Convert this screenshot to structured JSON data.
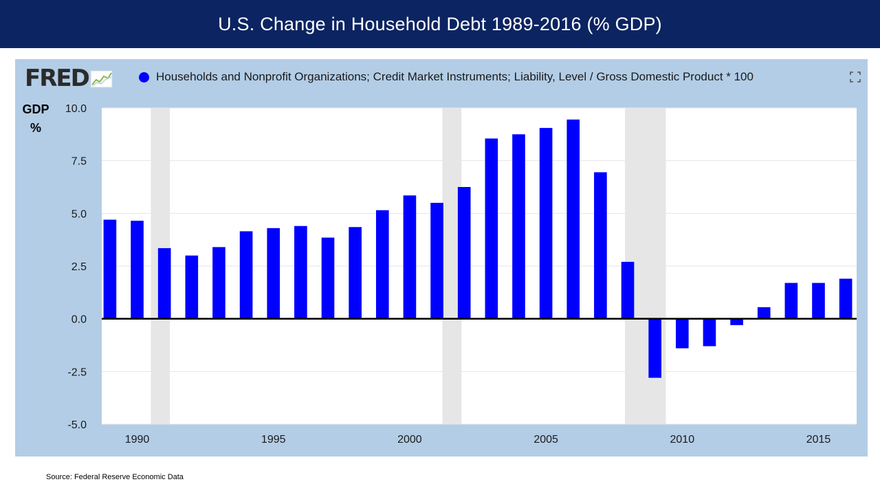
{
  "title": "U.S. Change in Household Debt 1989-2016 (% GDP)",
  "logo_text": "FRED",
  "legend_label": "Households and Nonprofit Organizations; Credit Market Instruments; Liability, Level / Gross Domestic Product * 100",
  "source": "Source:  Federal Reserve Economic Data",
  "icons": {
    "expand": "expand-icon",
    "logo_graph": "trend-line-icon"
  },
  "colors": {
    "banner": "#0c2461",
    "panel": "#b3cde6",
    "bars": "#0000ff",
    "recession": "#e6e6e6"
  },
  "chart_data": {
    "type": "bar",
    "ylabel_line1": "GDP",
    "ylabel_line2": "%",
    "ylim": [
      -5,
      10
    ],
    "yticks": [
      10,
      7.5,
      5,
      2.5,
      0,
      -2.5,
      -5
    ],
    "ytick_labels": [
      "10.0",
      "7.5",
      "5.0",
      "2.5",
      "0.0",
      "-2.5",
      "-5.0"
    ],
    "xlim": [
      1988.7,
      2016.4
    ],
    "xticks": [
      1990,
      1995,
      2000,
      2005,
      2010,
      2015
    ],
    "xtick_labels": [
      "1990",
      "1995",
      "2000",
      "2005",
      "2010",
      "2015"
    ],
    "grid": true,
    "legend_position": "top",
    "x": [
      1989,
      1990,
      1991,
      1992,
      1993,
      1994,
      1995,
      1996,
      1997,
      1998,
      1999,
      2000,
      2001,
      2002,
      2003,
      2004,
      2005,
      2006,
      2007,
      2008,
      2009,
      2010,
      2011,
      2012,
      2013,
      2014,
      2015,
      2016
    ],
    "values": [
      4.7,
      4.65,
      3.35,
      3.0,
      3.4,
      4.15,
      4.3,
      4.4,
      3.85,
      4.35,
      5.15,
      5.85,
      5.5,
      6.25,
      8.55,
      8.75,
      9.05,
      9.45,
      6.95,
      2.7,
      -2.8,
      -1.4,
      -1.3,
      -0.3,
      0.55,
      1.7,
      1.7,
      1.9
    ],
    "recessions": [
      [
        1990.5,
        1991.2
      ],
      [
        2001.2,
        2001.9
      ],
      [
        2007.9,
        2009.4
      ]
    ]
  }
}
